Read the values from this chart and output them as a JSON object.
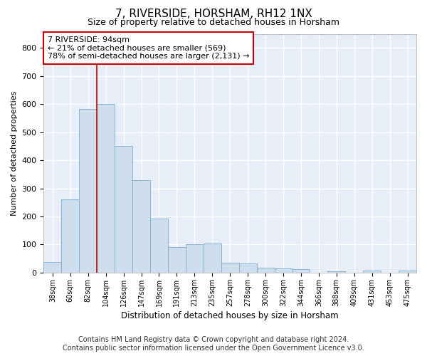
{
  "title": "7, RIVERSIDE, HORSHAM, RH12 1NX",
  "subtitle": "Size of property relative to detached houses in Horsham",
  "xlabel": "Distribution of detached houses by size in Horsham",
  "ylabel": "Number of detached properties",
  "categories": [
    "38sqm",
    "60sqm",
    "82sqm",
    "104sqm",
    "126sqm",
    "147sqm",
    "169sqm",
    "191sqm",
    "213sqm",
    "235sqm",
    "257sqm",
    "278sqm",
    "300sqm",
    "322sqm",
    "344sqm",
    "366sqm",
    "388sqm",
    "409sqm",
    "431sqm",
    "453sqm",
    "475sqm"
  ],
  "values": [
    38,
    262,
    582,
    600,
    450,
    330,
    193,
    90,
    100,
    103,
    35,
    32,
    17,
    16,
    12,
    0,
    6,
    0,
    7,
    0,
    7
  ],
  "bar_color": "#cfdeed",
  "bar_edge_color": "#7bafd4",
  "vline_position": 2.5,
  "vline_color": "#cc0000",
  "annotation_text": "7 RIVERSIDE: 94sqm\n← 21% of detached houses are smaller (569)\n78% of semi-detached houses are larger (2,131) →",
  "annotation_box_color": "#ffffff",
  "annotation_box_edge": "#cc0000",
  "annotation_fontsize": 8,
  "ylim": [
    0,
    850
  ],
  "yticks": [
    0,
    100,
    200,
    300,
    400,
    500,
    600,
    700,
    800
  ],
  "background_color": "#e8eef8",
  "grid_color": "#ffffff",
  "footer_line1": "Contains HM Land Registry data © Crown copyright and database right 2024.",
  "footer_line2": "Contains public sector information licensed under the Open Government Licence v3.0.",
  "title_fontsize": 11,
  "subtitle_fontsize": 9,
  "ylabel_fontsize": 8,
  "xlabel_fontsize": 8.5,
  "footer_fontsize": 7
}
